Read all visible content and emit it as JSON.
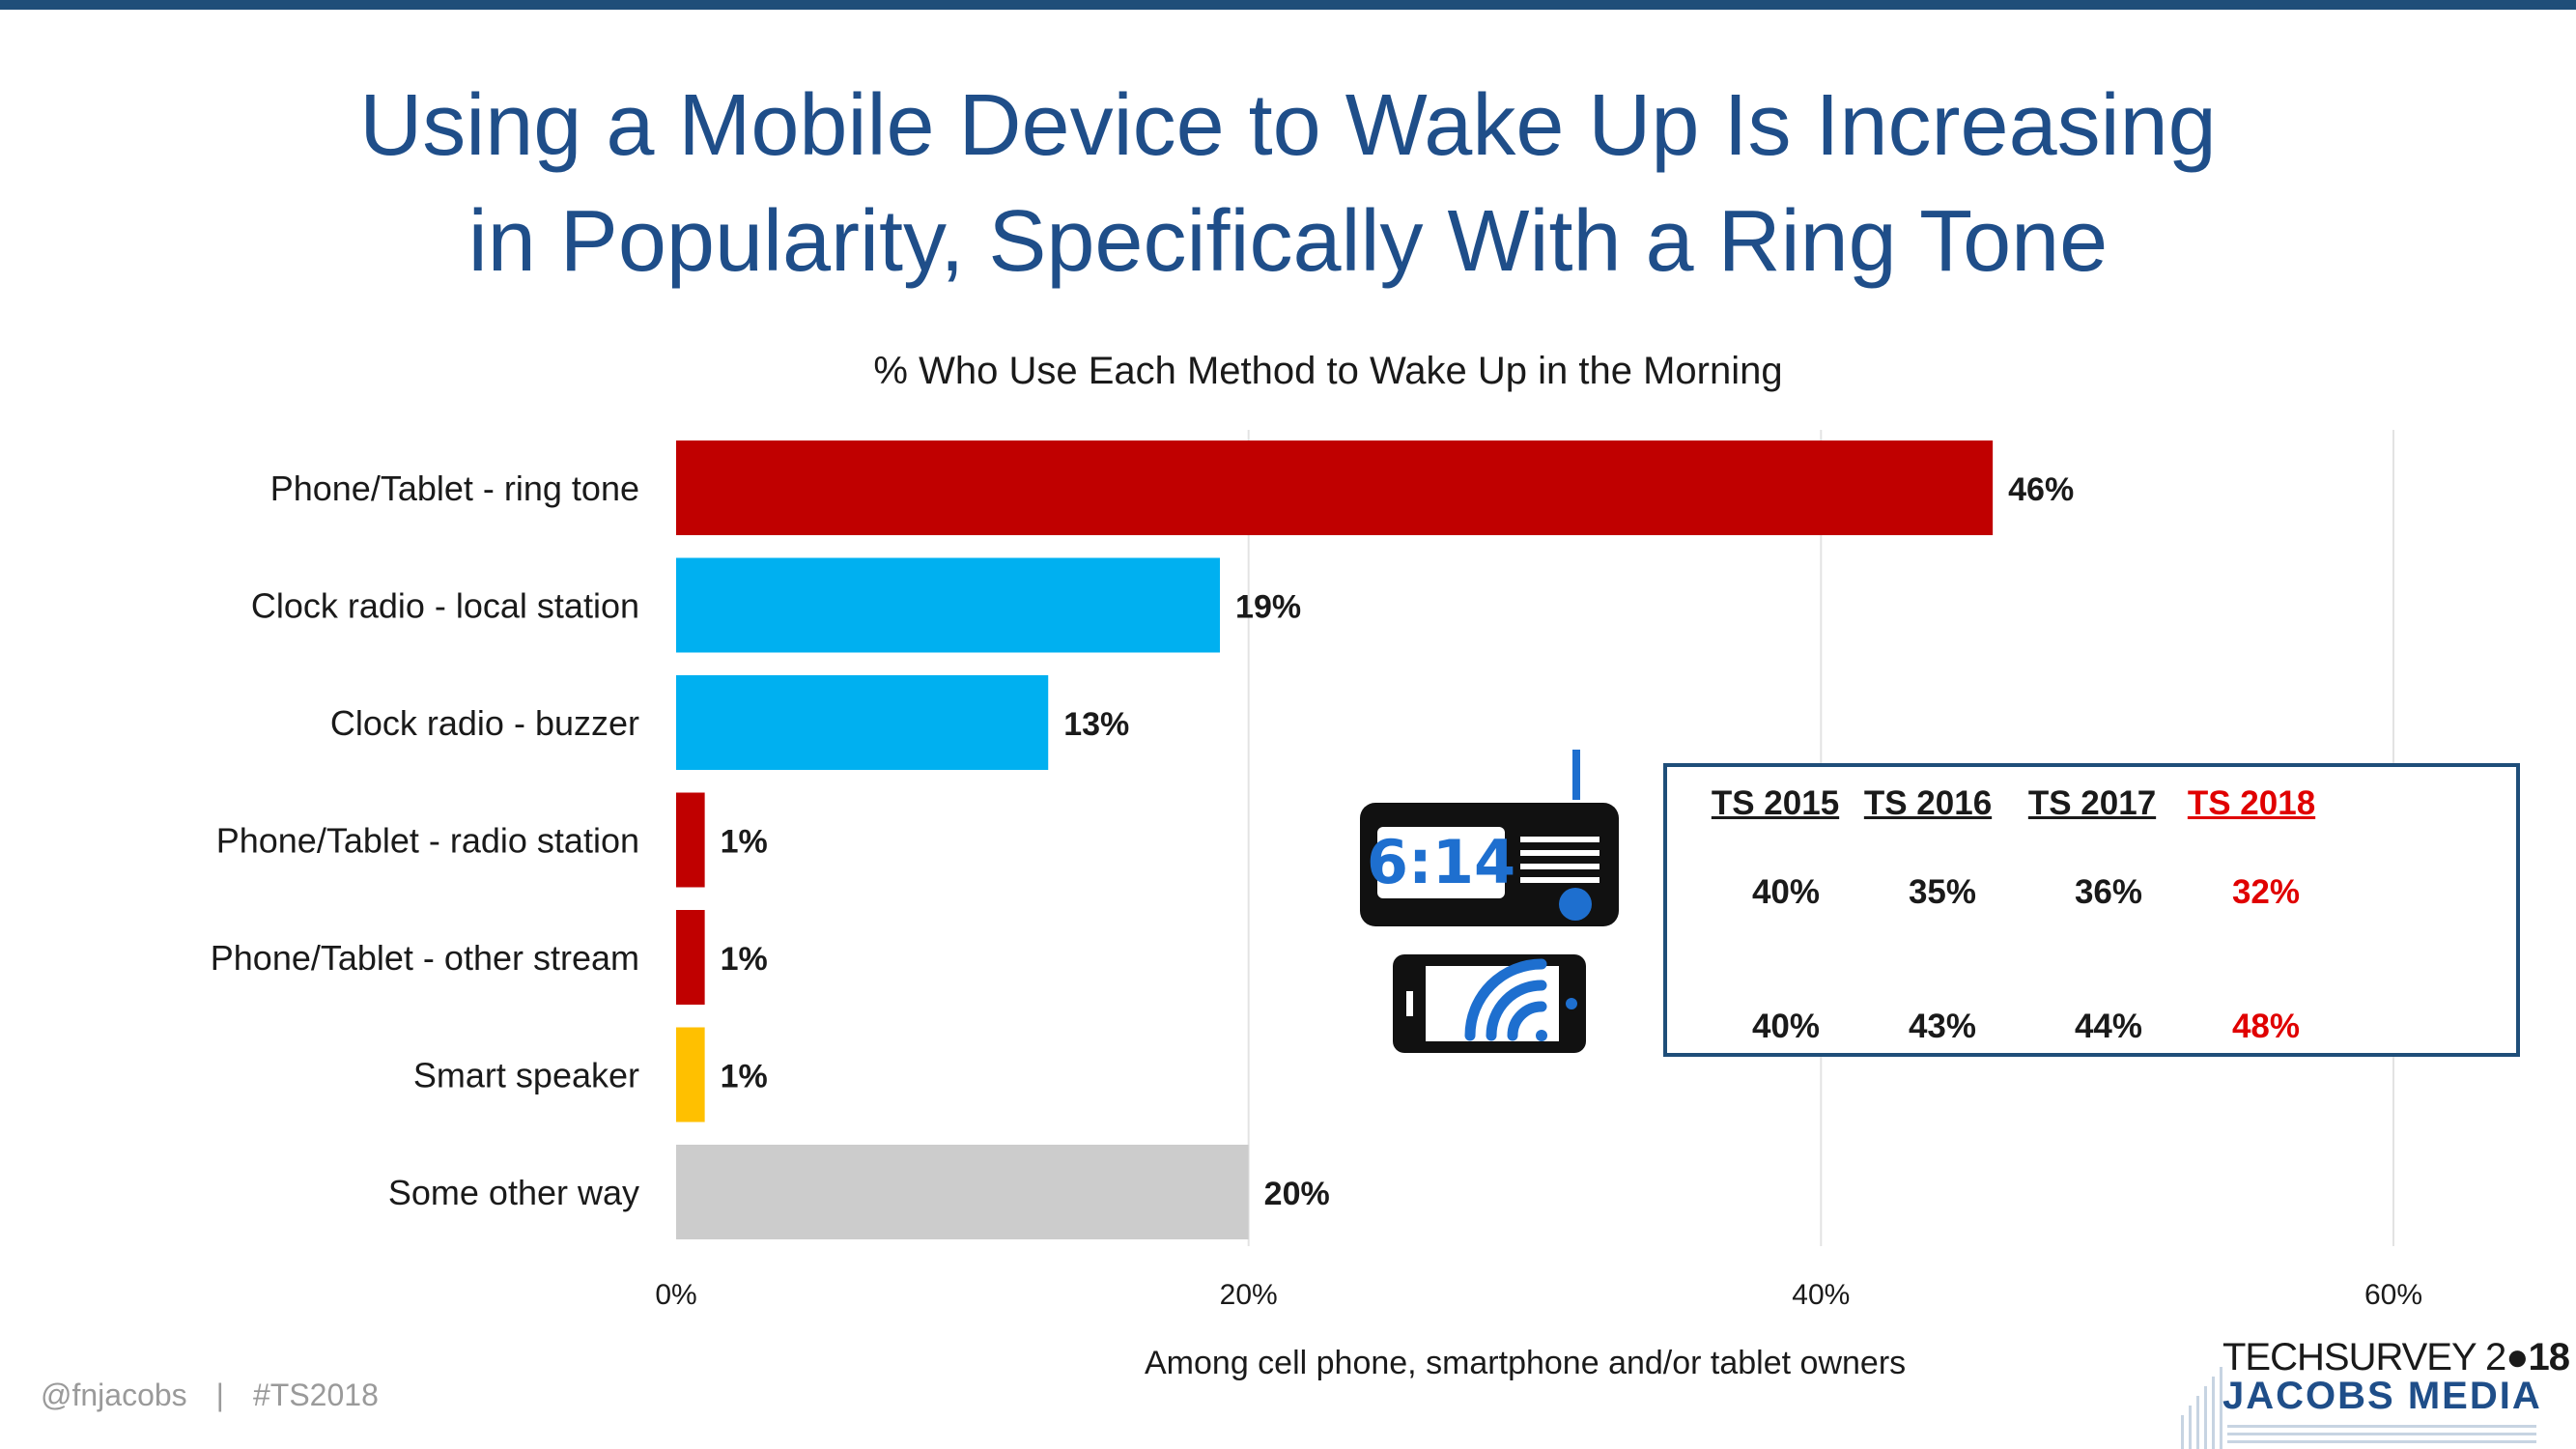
{
  "title_lines": [
    "Using a Mobile Device to Wake Up Is Increasing",
    "in Popularity, Specifically With a Ring Tone"
  ],
  "colors": {
    "accent": "#1f4e79",
    "red": "#c00000",
    "blue": "#00b0f0",
    "gold": "#ffc000",
    "gray": "#cccccc",
    "highlight_red": "#e00000"
  },
  "chart_data": {
    "type": "bar",
    "orientation": "horizontal",
    "title": "% Who Use Each Method to Wake Up in the Morning",
    "xlabel": "Among cell phone, smartphone and/or tablet owners",
    "xlim": [
      0,
      60
    ],
    "ticks": [
      0,
      20,
      40,
      60
    ],
    "tick_labels": [
      "0%",
      "20%",
      "40%",
      "60%"
    ],
    "grid": true,
    "categories": [
      "Phone/Tablet - ring tone",
      "Clock radio - local station",
      "Clock radio - buzzer",
      "Phone/Tablet - radio station",
      "Phone/Tablet - other stream",
      "Smart speaker",
      "Some other way"
    ],
    "values": [
      46,
      19,
      13,
      1,
      1,
      1,
      20
    ],
    "data_labels": [
      "46%",
      "19%",
      "13%",
      "1%",
      "1%",
      "1%",
      "20%"
    ],
    "bar_colors": [
      "#c00000",
      "#00b0f0",
      "#00b0f0",
      "#c00000",
      "#c00000",
      "#ffc000",
      "#cccccc"
    ]
  },
  "trend_table": {
    "headers": [
      "TS 2015",
      "TS 2016",
      "TS 2017",
      "TS 2018"
    ],
    "rows": [
      {
        "icon": "clock-radio-icon",
        "values": [
          "40%",
          "35%",
          "36%",
          "32%"
        ]
      },
      {
        "icon": "phone-stream-icon",
        "values": [
          "40%",
          "43%",
          "44%",
          "48%"
        ]
      }
    ]
  },
  "clock_display": "6:14",
  "footer": {
    "handle": "@fnjacobs",
    "separator": "|",
    "hashtag": "#TS2018"
  },
  "logo": {
    "line1_prefix": "TECHSURVEY 2",
    "line1_suffix": "18",
    "line2": "JACOBS MEDIA"
  }
}
